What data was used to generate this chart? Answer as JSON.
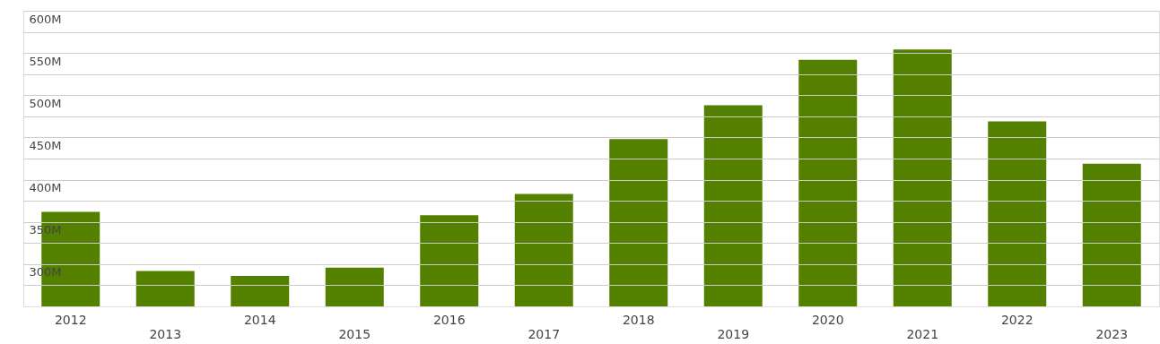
{
  "chart_data": {
    "type": "bar",
    "categories": [
      "2012",
      "2013",
      "2014",
      "2015",
      "2016",
      "2017",
      "2018",
      "2019",
      "2020",
      "2021",
      "2022",
      "2023"
    ],
    "values": [
      362,
      292,
      286,
      296,
      358,
      383,
      448,
      488,
      542,
      554,
      469,
      419
    ],
    "color": "#548000",
    "ylim": [
      250,
      600
    ],
    "yticks": [
      {
        "value": 275,
        "label": null
      },
      {
        "value": 300,
        "label": "300M"
      },
      {
        "value": 325,
        "label": null
      },
      {
        "value": 350,
        "label": "350M"
      },
      {
        "value": 375,
        "label": null
      },
      {
        "value": 400,
        "label": "400M"
      },
      {
        "value": 425,
        "label": null
      },
      {
        "value": 450,
        "label": "450M"
      },
      {
        "value": 475,
        "label": null
      },
      {
        "value": 500,
        "label": "500M"
      },
      {
        "value": 525,
        "label": null
      },
      {
        "value": 550,
        "label": "550M"
      },
      {
        "value": 575,
        "label": null
      },
      {
        "value": 600,
        "label": "600M"
      }
    ],
    "grid": "y"
  }
}
